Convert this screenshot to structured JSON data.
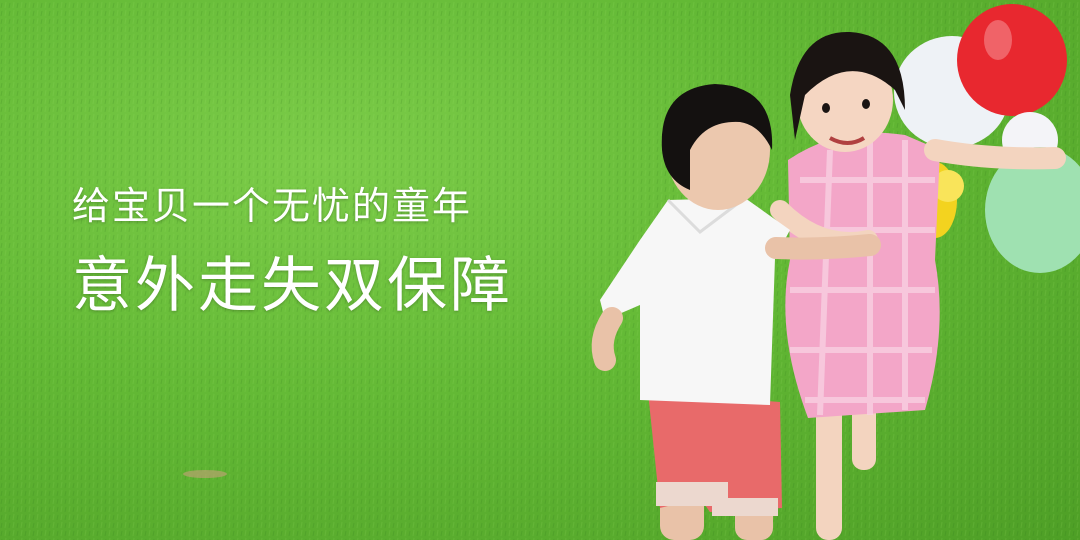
{
  "banner": {
    "subtitle": "给宝贝一个无忧的童年",
    "title": "意外走失双保障"
  },
  "colors": {
    "grass": "#63b935",
    "text": "#ffffff",
    "balloon_red": "#e8282f",
    "balloon_white": "#eef2f6",
    "balloon_green": "#9fe1b1",
    "balloon_yellow": "#f3d31f",
    "dress_pink": "#f3a6c8",
    "shorts_red": "#e86a6a",
    "shirt_white": "#f7f7f7"
  },
  "scene": {
    "subject": [
      "boy-running",
      "girl-running",
      "balloons"
    ]
  }
}
